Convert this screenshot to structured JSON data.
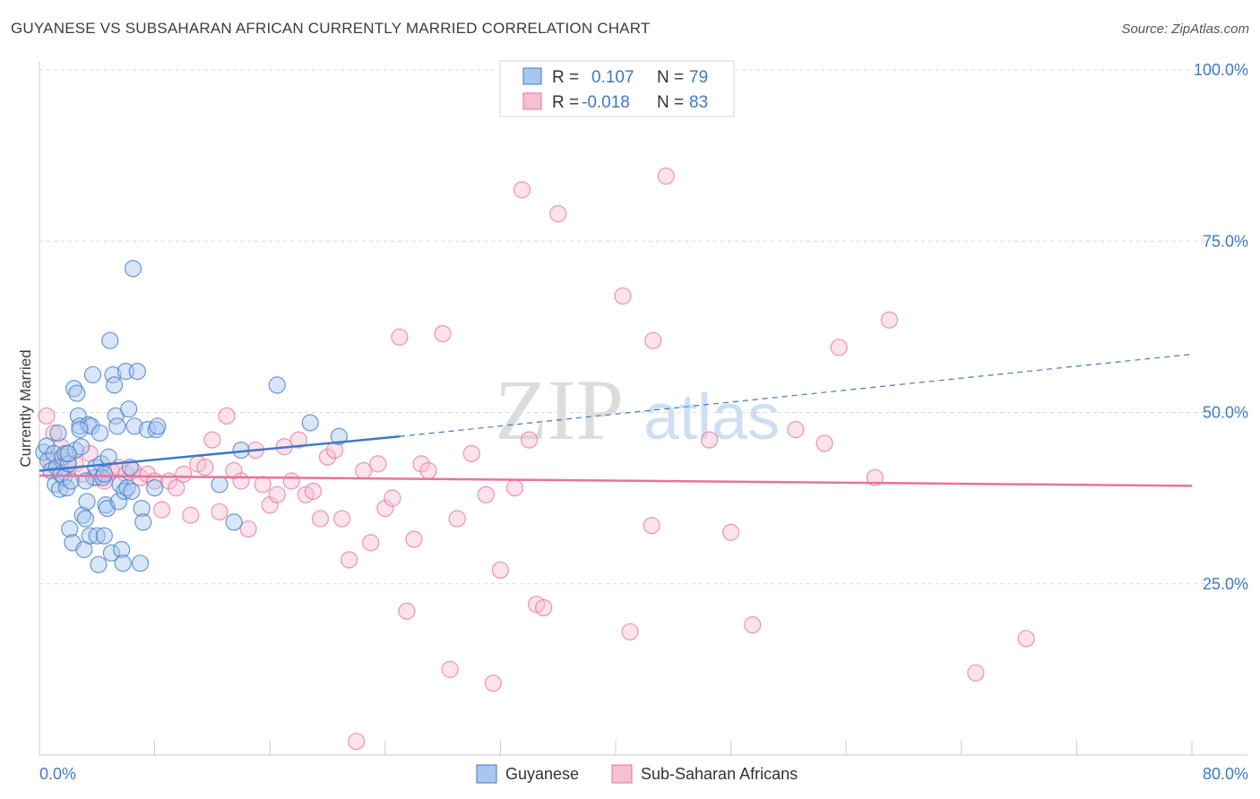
{
  "title": "GUYANESE VS SUBSAHARAN AFRICAN CURRENTLY MARRIED CORRELATION CHART",
  "source": "Source: ZipAtlas.com",
  "colors": {
    "blue": "#3f78c8",
    "blue_fill": "#a9c7ee",
    "pink": "#e8739b",
    "pink_fill": "#f6bfd2",
    "grid": "#d8d8d8"
  },
  "legend": {
    "rows": [
      {
        "r_label": "R =",
        "r_value": "0.107",
        "n_label": "N =",
        "n_value": "79"
      },
      {
        "r_label": "R =",
        "r_value": "-0.018",
        "n_label": "N =",
        "n_value": "83"
      }
    ]
  },
  "bottom_legend": [
    "Guyanese",
    "Sub-Saharan Africans"
  ],
  "watermark": {
    "zip": "ZIP",
    "atlas": "atlas"
  },
  "chart_data": {
    "type": "scatter",
    "xlabel": "",
    "ylabel": "Currently Married",
    "xlim": [
      0,
      80
    ],
    "ylim": [
      0,
      105
    ],
    "x_tick_labels": [
      "0.0%",
      "80.0%"
    ],
    "y_ticks": [
      25,
      50,
      75,
      100
    ],
    "y_tick_labels": [
      "25.0%",
      "50.0%",
      "75.0%",
      "100.0%"
    ],
    "grid": true,
    "legend_position": "top-center",
    "series": [
      {
        "name": "Guyanese",
        "color": "#3f78c8",
        "trend": {
          "x0": 0,
          "y0": 41.5,
          "x1": 25,
          "y1": 46.5,
          "dashed_to_x": 80,
          "dashed_to_y": 58.5
        },
        "points": [
          [
            0.3,
            44.2
          ],
          [
            0.5,
            45.1
          ],
          [
            0.6,
            43.0
          ],
          [
            0.8,
            41.5
          ],
          [
            1.0,
            44.0
          ],
          [
            1.1,
            39.5
          ],
          [
            1.2,
            42.0
          ],
          [
            1.3,
            47.0
          ],
          [
            1.4,
            38.8
          ],
          [
            1.5,
            41.0
          ],
          [
            1.6,
            43.5
          ],
          [
            1.7,
            40.5
          ],
          [
            1.8,
            44.0
          ],
          [
            1.9,
            39.0
          ],
          [
            2.0,
            42.5
          ],
          [
            2.1,
            33.0
          ],
          [
            2.2,
            40.0
          ],
          [
            2.3,
            31.0
          ],
          [
            2.4,
            53.5
          ],
          [
            2.5,
            44.5
          ],
          [
            2.6,
            52.8
          ],
          [
            2.7,
            49.5
          ],
          [
            2.8,
            48.0
          ],
          [
            2.9,
            45.0
          ],
          [
            3.0,
            35.0
          ],
          [
            3.1,
            30.0
          ],
          [
            3.2,
            34.5
          ],
          [
            3.3,
            37.0
          ],
          [
            3.4,
            48.2
          ],
          [
            3.5,
            32.0
          ],
          [
            3.6,
            48.0
          ],
          [
            3.7,
            55.5
          ],
          [
            3.8,
            40.5
          ],
          [
            3.9,
            42.0
          ],
          [
            4.0,
            32.0
          ],
          [
            4.1,
            27.8
          ],
          [
            4.2,
            47.0
          ],
          [
            4.3,
            42.5
          ],
          [
            4.4,
            40.5
          ],
          [
            4.5,
            32.0
          ],
          [
            4.6,
            36.5
          ],
          [
            4.7,
            36.0
          ],
          [
            4.8,
            43.5
          ],
          [
            4.9,
            60.5
          ],
          [
            5.0,
            29.5
          ],
          [
            5.1,
            55.5
          ],
          [
            5.2,
            54.0
          ],
          [
            5.3,
            49.5
          ],
          [
            5.4,
            48.0
          ],
          [
            5.5,
            37.0
          ],
          [
            5.6,
            39.5
          ],
          [
            5.7,
            30.0
          ],
          [
            5.8,
            28.0
          ],
          [
            5.9,
            38.5
          ],
          [
            6.0,
            56.0
          ],
          [
            6.1,
            39.0
          ],
          [
            6.2,
            50.5
          ],
          [
            6.3,
            42.0
          ],
          [
            6.4,
            38.5
          ],
          [
            6.5,
            71.0
          ],
          [
            6.6,
            48.0
          ],
          [
            6.8,
            56.0
          ],
          [
            7.0,
            28.0
          ],
          [
            7.1,
            36.0
          ],
          [
            7.2,
            34.0
          ],
          [
            7.5,
            47.5
          ],
          [
            8.0,
            39.0
          ],
          [
            8.1,
            47.5
          ],
          [
            8.2,
            48.0
          ],
          [
            12.5,
            39.5
          ],
          [
            13.5,
            34.0
          ],
          [
            14.0,
            44.5
          ],
          [
            16.5,
            54.0
          ],
          [
            18.8,
            48.5
          ],
          [
            20.8,
            46.5
          ],
          [
            2.0,
            44.0
          ],
          [
            2.8,
            47.5
          ],
          [
            3.2,
            40.0
          ],
          [
            4.5,
            41.0
          ]
        ]
      },
      {
        "name": "Sub-Saharan Africans",
        "color": "#e8739b",
        "trend": {
          "x0": 0,
          "y0": 40.8,
          "x1": 80,
          "y1": 39.3
        },
        "points": [
          [
            0.5,
            49.5
          ],
          [
            1.0,
            47.0
          ],
          [
            1.5,
            45.0
          ],
          [
            2.0,
            43.0
          ],
          [
            2.5,
            42.5
          ],
          [
            3.0,
            41.0
          ],
          [
            3.5,
            44.0
          ],
          [
            4.0,
            40.5
          ],
          [
            4.5,
            40.0
          ],
          [
            5.0,
            41.5
          ],
          [
            5.5,
            42.0
          ],
          [
            6.0,
            41.0
          ],
          [
            6.5,
            41.5
          ],
          [
            7.0,
            40.5
          ],
          [
            7.5,
            41.0
          ],
          [
            8.0,
            40.0
          ],
          [
            8.5,
            35.8
          ],
          [
            9.0,
            40.0
          ],
          [
            9.5,
            39.0
          ],
          [
            10.0,
            41.0
          ],
          [
            10.5,
            35.0
          ],
          [
            11.0,
            42.5
          ],
          [
            11.5,
            42.0
          ],
          [
            12.0,
            46.0
          ],
          [
            12.5,
            35.5
          ],
          [
            13.0,
            49.5
          ],
          [
            13.5,
            41.5
          ],
          [
            14.0,
            40.0
          ],
          [
            14.5,
            33.0
          ],
          [
            15.0,
            44.5
          ],
          [
            15.5,
            39.5
          ],
          [
            16.0,
            36.5
          ],
          [
            16.5,
            38.0
          ],
          [
            17.0,
            45.0
          ],
          [
            17.5,
            40.0
          ],
          [
            18.0,
            46.0
          ],
          [
            18.5,
            38.0
          ],
          [
            19.0,
            38.5
          ],
          [
            19.5,
            34.5
          ],
          [
            20.0,
            43.5
          ],
          [
            20.5,
            44.5
          ],
          [
            21.0,
            34.5
          ],
          [
            21.5,
            28.5
          ],
          [
            22.0,
            2.0
          ],
          [
            22.5,
            41.5
          ],
          [
            23.0,
            31.0
          ],
          [
            23.5,
            42.5
          ],
          [
            24.0,
            36.0
          ],
          [
            24.5,
            37.5
          ],
          [
            25.0,
            61.0
          ],
          [
            25.5,
            21.0
          ],
          [
            26.0,
            31.5
          ],
          [
            26.5,
            42.5
          ],
          [
            27.0,
            41.5
          ],
          [
            28.0,
            61.5
          ],
          [
            28.5,
            12.5
          ],
          [
            29.0,
            34.5
          ],
          [
            30.0,
            44.0
          ],
          [
            31.0,
            38.0
          ],
          [
            31.5,
            10.5
          ],
          [
            32.0,
            27.0
          ],
          [
            33.0,
            39.0
          ],
          [
            33.5,
            82.5
          ],
          [
            34.0,
            46.0
          ],
          [
            34.5,
            22.0
          ],
          [
            35.0,
            21.5
          ],
          [
            36.0,
            79.0
          ],
          [
            40.5,
            67.0
          ],
          [
            41.0,
            18.0
          ],
          [
            42.5,
            33.5
          ],
          [
            42.6,
            60.5
          ],
          [
            43.5,
            84.5
          ],
          [
            46.5,
            46.0
          ],
          [
            48.0,
            32.5
          ],
          [
            49.5,
            19.0
          ],
          [
            52.5,
            47.5
          ],
          [
            54.5,
            45.5
          ],
          [
            55.5,
            59.5
          ],
          [
            58.0,
            40.5
          ],
          [
            59.0,
            63.5
          ],
          [
            65.0,
            12.0
          ],
          [
            68.5,
            17.0
          ],
          [
            0.8,
            43.0
          ]
        ]
      }
    ]
  }
}
